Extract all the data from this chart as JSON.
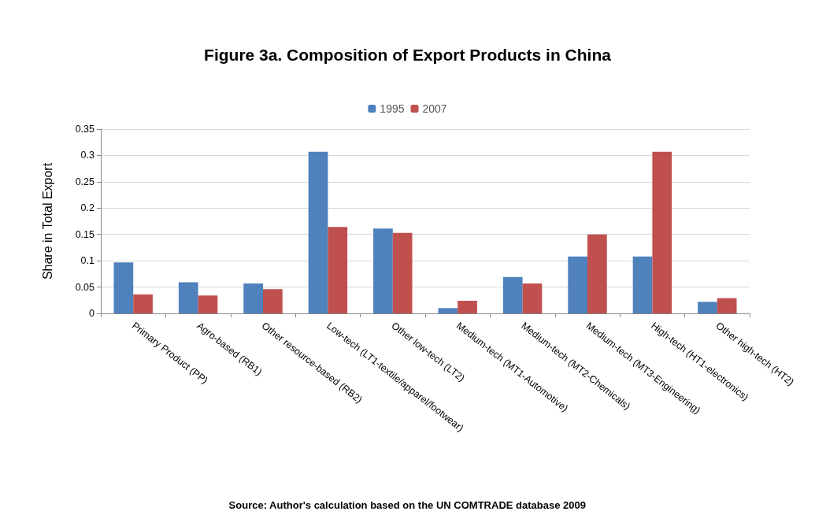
{
  "chart_data": {
    "type": "bar",
    "title": "Figure 3a. Composition of Export Products in China",
    "ylabel": "Share in Total Export",
    "categories": [
      "Primary Product (PP)",
      "Agro-based (RB1)",
      "Other resource-based (RB2)",
      "Low-tech (LT1-textile/apparel/footwear)",
      "Other low-tech (LT2)",
      "Medium-tech (MT1-Automotive)",
      "Medium-tech (MT2-Chemicals)",
      "Medium-tech (MT3-Engineering)",
      "High-tech (HT1-electronics)",
      "Other high-tech (HT2)"
    ],
    "series": [
      {
        "name": "1995",
        "color": "#4f81bd",
        "values": [
          0.097,
          0.059,
          0.057,
          0.307,
          0.161,
          0.01,
          0.069,
          0.108,
          0.108,
          0.022
        ]
      },
      {
        "name": "2007",
        "color": "#c0504d",
        "values": [
          0.036,
          0.034,
          0.046,
          0.164,
          0.153,
          0.024,
          0.057,
          0.15,
          0.307,
          0.029
        ]
      }
    ],
    "ylim": [
      0,
      0.35
    ],
    "yticks": [
      0,
      0.05,
      0.1,
      0.15,
      0.2,
      0.25,
      0.3,
      0.35
    ],
    "grid": "y",
    "legend": "top",
    "annotations": [
      "Source: Author's calculation based on the UN COMTRADE database 2009"
    ]
  }
}
